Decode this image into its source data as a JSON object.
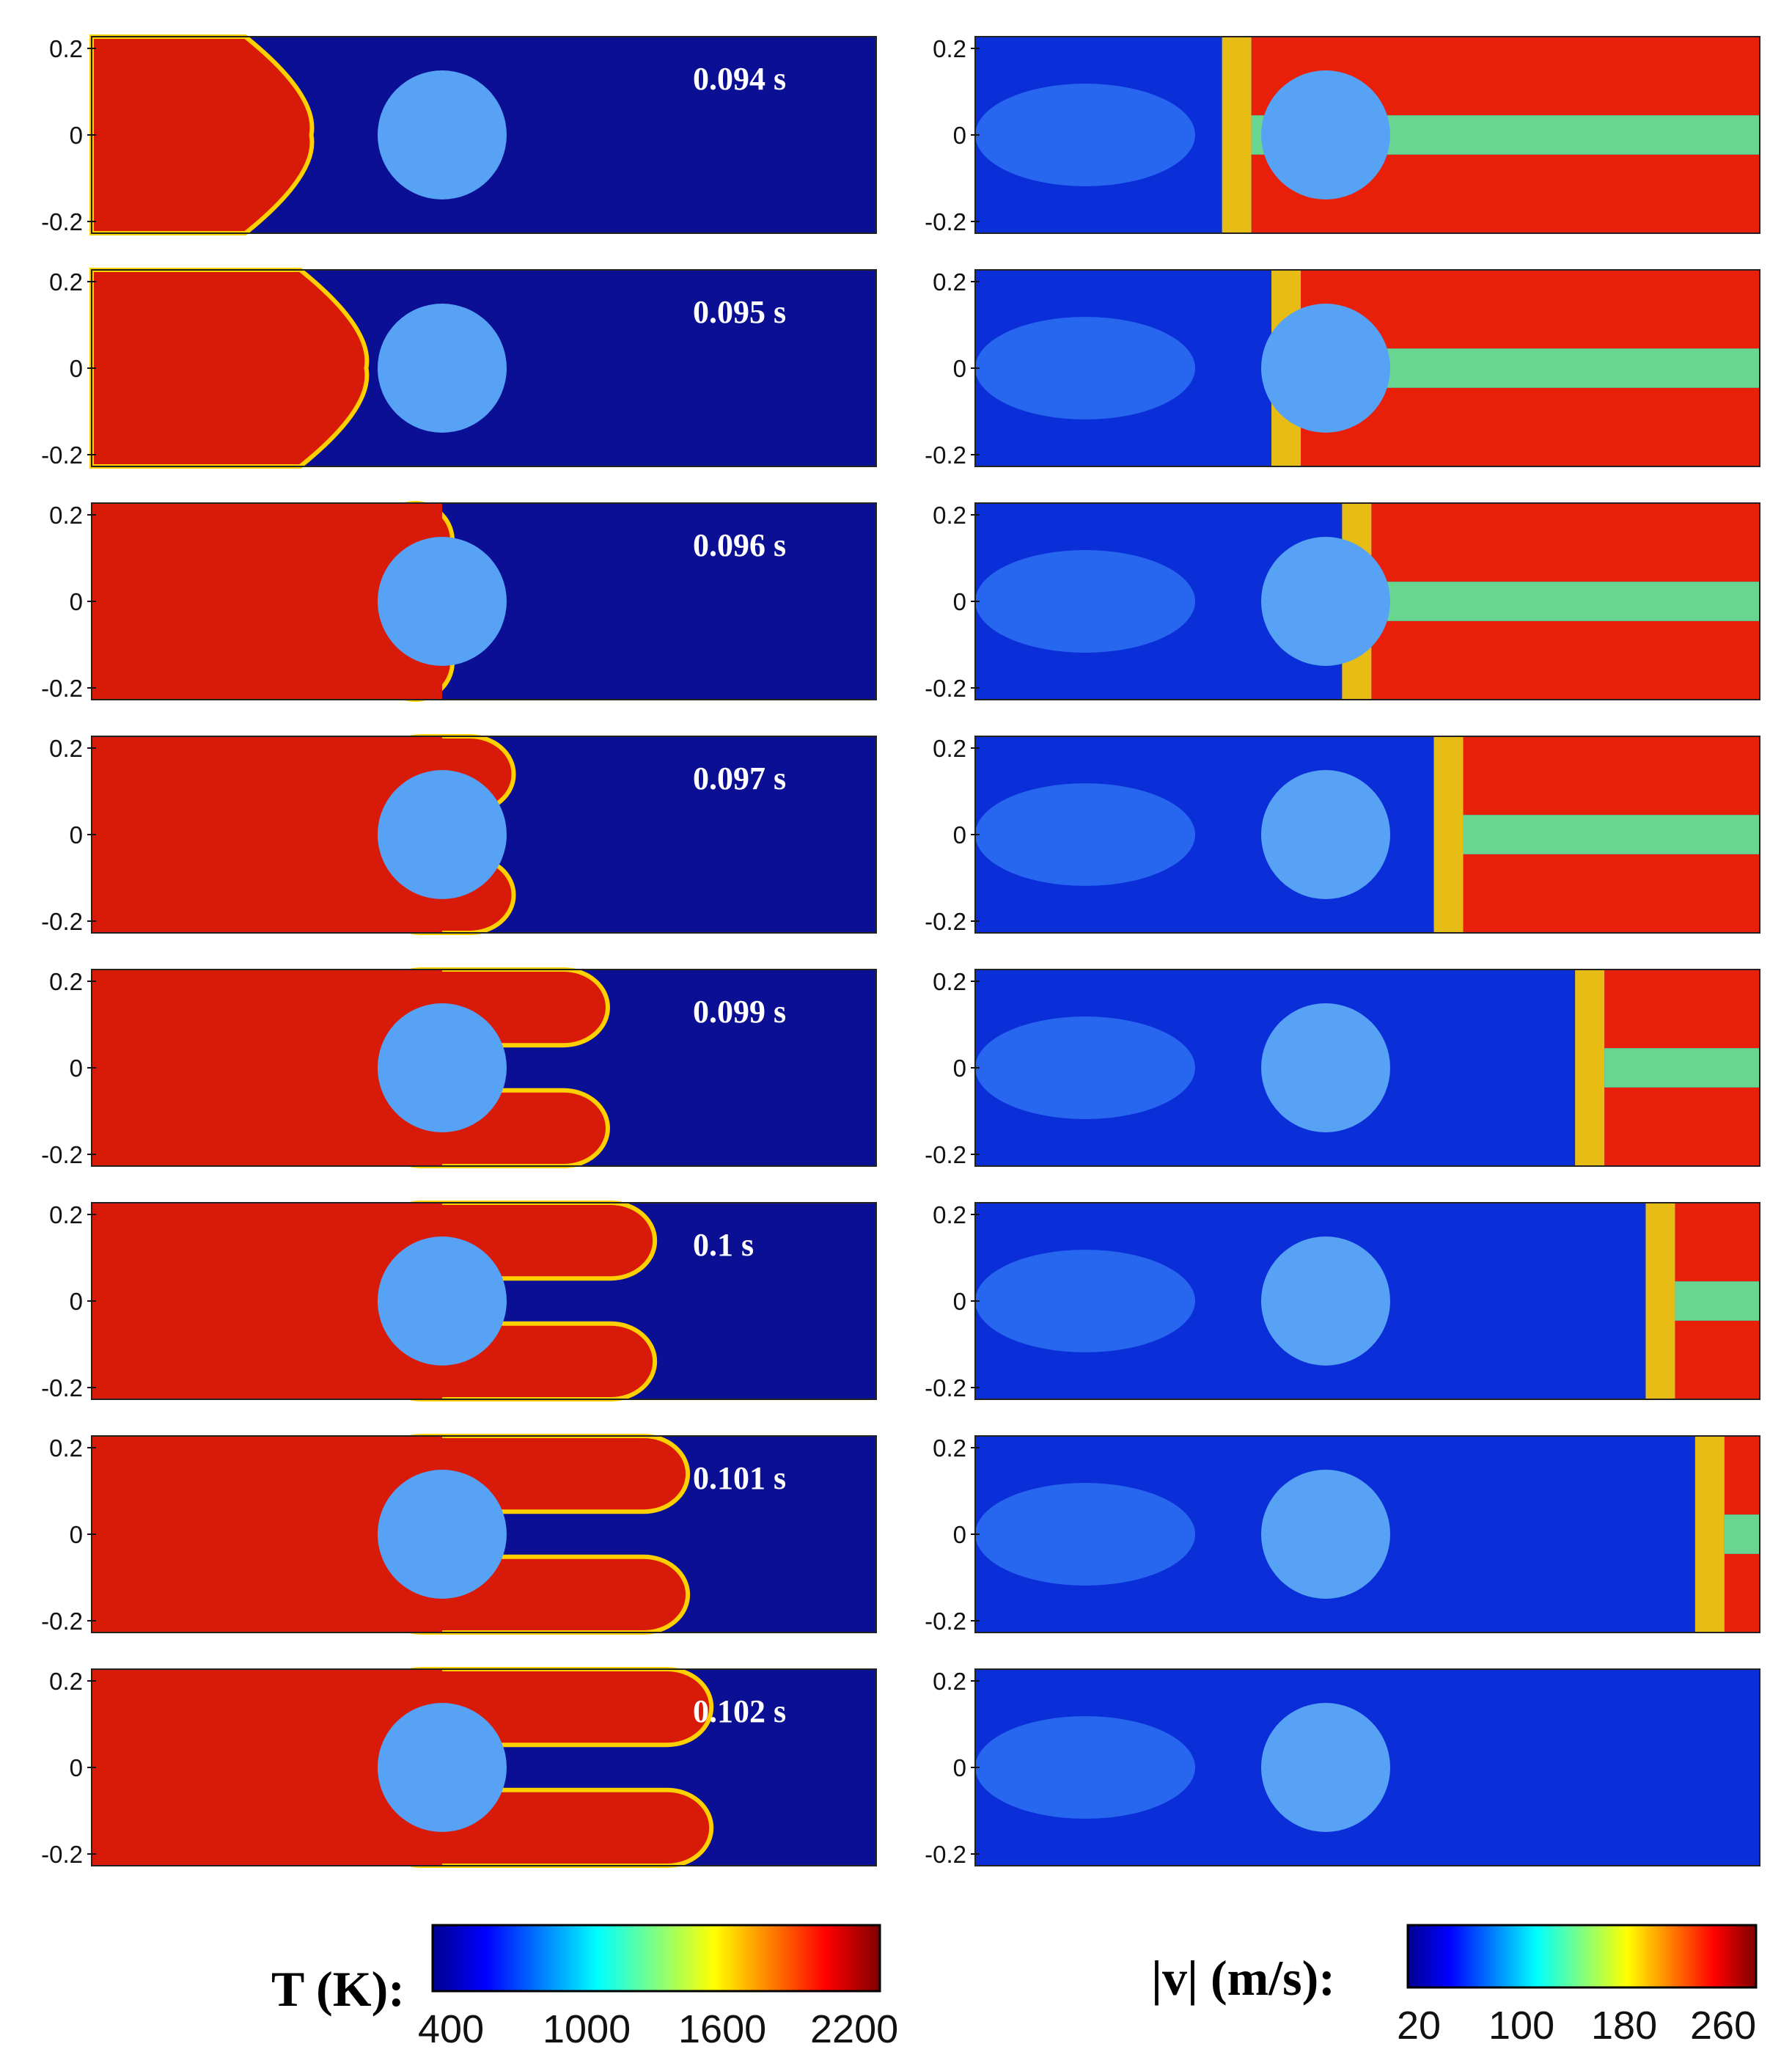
{
  "figure": {
    "y_ticks": [
      "0.2",
      "0",
      "-0.2"
    ],
    "rows": [
      {
        "time": "0.094 s",
        "front": 0.28
      },
      {
        "time": "0.095 s",
        "front": 0.35
      },
      {
        "time": "0.096 s",
        "front": 0.45
      },
      {
        "time": "0.097 s",
        "front": 0.58
      },
      {
        "time": "0.099 s",
        "front": 0.78
      },
      {
        "time": "0.1 s",
        "front": 0.88
      },
      {
        "time": "0.101 s",
        "front": 0.95
      },
      {
        "time": "0.102 s",
        "front": 1.0
      }
    ],
    "temperature_colorbar": {
      "label": "T (K):",
      "ticks": [
        "400",
        "1000",
        "1600",
        "2200"
      ]
    },
    "velocity_colorbar": {
      "label": "|v| (m/s):",
      "ticks": [
        "20",
        "100",
        "180",
        "260"
      ]
    },
    "colors": {
      "cold": "#0a0f94",
      "hot": "#d81b08",
      "cylinder": "#57a2f5"
    }
  }
}
